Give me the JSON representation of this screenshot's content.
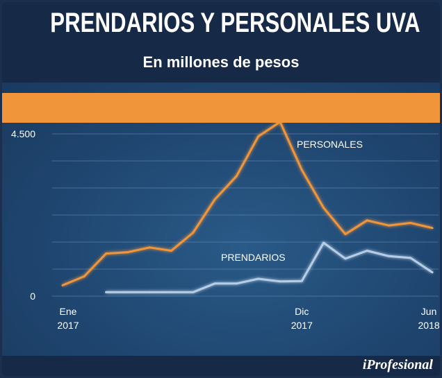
{
  "header": {
    "title": "PRENDARIOS Y PERSONALES UVA",
    "subtitle": "En millones de pesos"
  },
  "brand": "iProfesional",
  "colors": {
    "personales": "#f0953a",
    "prendarios": "#b7cde6",
    "band": "#f0953a",
    "background": "#1f4670"
  },
  "chart_data": {
    "type": "line",
    "title": "PRENDARIOS Y PERSONALES UVA",
    "subtitle": "En millones de pesos",
    "ylim": [
      0,
      4500
    ],
    "y_ticks": [
      {
        "value": 0,
        "label": "0"
      },
      {
        "value": 4500,
        "label": "4.500"
      }
    ],
    "grid_values": [
      750,
      1500,
      2250,
      3000,
      3750
    ],
    "x_count": 18,
    "x_ticks": [
      {
        "index": 0,
        "line1": "Ene",
        "line2": "2017"
      },
      {
        "index": 11,
        "line1": "Dic",
        "line2": "2017"
      },
      {
        "index": 17,
        "line1": "Jun",
        "line2": "2018"
      }
    ],
    "series": [
      {
        "name": "PERSONALES",
        "x": [
          0,
          1,
          2,
          3,
          4,
          5,
          6,
          7,
          8,
          9,
          10,
          11,
          12,
          13,
          14,
          15,
          16,
          17
        ],
        "values": [
          300,
          550,
          1180,
          1220,
          1350,
          1260,
          1760,
          2680,
          3330,
          4430,
          4830,
          3500,
          2450,
          1720,
          2100,
          1960,
          2030,
          1890
        ],
        "label_at": 11
      },
      {
        "name": "PRENDARIOS",
        "x": [
          2,
          3,
          4,
          5,
          6,
          7,
          8,
          9,
          10,
          11,
          12,
          13,
          14,
          15,
          16,
          17
        ],
        "values": [
          110,
          110,
          110,
          110,
          110,
          350,
          350,
          480,
          410,
          420,
          1480,
          1040,
          1260,
          1110,
          1060,
          660
        ],
        "label_at": 9
      }
    ]
  }
}
